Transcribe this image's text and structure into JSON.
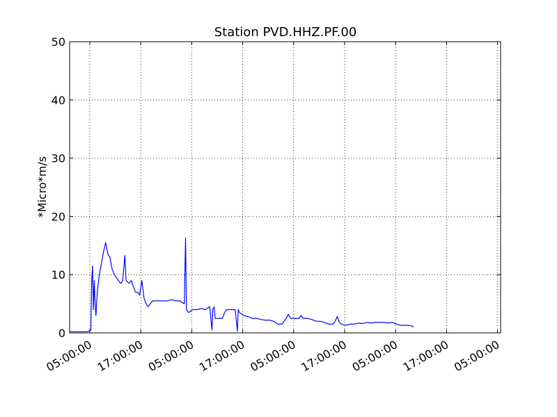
{
  "chart_data": {
    "type": "line",
    "title": "Station PVD.HHZ.PF.00",
    "xlabel": "",
    "ylabel": "*Micro*m/s",
    "ylim": [
      0,
      50
    ],
    "xlim_hours": [
      0,
      81
    ],
    "yticks": [
      0,
      10,
      20,
      30,
      40,
      50
    ],
    "xticks": [
      {
        "hour": 4,
        "label": "05:00:00"
      },
      {
        "hour": 16,
        "label": "17:00:00"
      },
      {
        "hour": 28,
        "label": "05:00:00"
      },
      {
        "hour": 40,
        "label": "17:00:00"
      },
      {
        "hour": 52,
        "label": "05:00:00"
      },
      {
        "hour": 64,
        "label": "17:00:00"
      },
      {
        "hour": 76,
        "label": "05:00:00"
      },
      {
        "hour": 88,
        "label": "17:00:00"
      },
      {
        "hour": 100,
        "label": "05:00:00"
      }
    ],
    "grid": true,
    "series": [
      {
        "name": "",
        "color": "#0000ff",
        "points": [
          [
            0,
            0.2
          ],
          [
            1,
            0.2
          ],
          [
            2,
            0.2
          ],
          [
            3,
            0.2
          ],
          [
            4,
            0.2
          ],
          [
            4.5,
            0.3
          ],
          [
            5,
            0.5
          ],
          [
            5.2,
            9
          ],
          [
            5.4,
            11.5
          ],
          [
            5.6,
            4
          ],
          [
            5.8,
            9
          ],
          [
            6,
            5
          ],
          [
            6.2,
            3
          ],
          [
            6.5,
            7
          ],
          [
            7,
            10
          ],
          [
            7.5,
            12
          ],
          [
            8,
            14
          ],
          [
            8.5,
            15.5
          ],
          [
            9,
            13.5
          ],
          [
            9.5,
            13
          ],
          [
            10,
            11
          ],
          [
            10.5,
            10
          ],
          [
            11,
            9.5
          ],
          [
            11.5,
            9
          ],
          [
            12,
            8.5
          ],
          [
            12.5,
            9
          ],
          [
            13,
            13.3
          ],
          [
            13.3,
            9
          ],
          [
            14,
            8.5
          ],
          [
            14.5,
            9
          ],
          [
            15,
            8
          ],
          [
            15.5,
            7
          ],
          [
            16,
            7
          ],
          [
            16.5,
            6.5
          ],
          [
            17,
            9
          ],
          [
            17.5,
            6
          ],
          [
            18,
            5
          ],
          [
            18.5,
            4.5
          ],
          [
            19,
            5
          ],
          [
            19.5,
            5.5
          ],
          [
            20,
            5.5
          ],
          [
            21,
            5.5
          ],
          [
            22,
            5.5
          ],
          [
            23,
            5.5
          ],
          [
            24,
            5.7
          ],
          [
            25,
            5.5
          ],
          [
            26,
            5.5
          ],
          [
            27,
            5
          ],
          [
            27.3,
            16.3
          ],
          [
            27.5,
            4
          ],
          [
            28,
            3.5
          ],
          [
            29,
            4
          ],
          [
            30,
            4
          ],
          [
            31,
            4.2
          ],
          [
            32,
            4
          ],
          [
            33,
            4.5
          ],
          [
            33.5,
            0.5
          ],
          [
            33.7,
            4
          ],
          [
            34,
            4.5
          ],
          [
            34.3,
            2.5
          ],
          [
            35,
            2.5
          ],
          [
            36,
            2.5
          ],
          [
            36.5,
            3.5
          ],
          [
            37,
            4
          ],
          [
            38,
            4
          ],
          [
            39,
            4
          ],
          [
            39.5,
            0.3
          ],
          [
            39.7,
            4
          ],
          [
            40,
            3.5
          ],
          [
            41,
            3
          ],
          [
            42,
            2.8
          ],
          [
            43,
            2.5
          ],
          [
            44,
            2.5
          ],
          [
            45,
            2.3
          ],
          [
            46,
            2.2
          ],
          [
            47,
            2.2
          ],
          [
            48,
            2
          ],
          [
            49,
            1.5
          ],
          [
            50,
            1.5
          ],
          [
            50.5,
            2
          ],
          [
            51,
            2.5
          ],
          [
            51.5,
            3.2
          ],
          [
            52,
            2.5
          ],
          [
            53,
            2.5
          ],
          [
            54,
            2.5
          ],
          [
            54.5,
            3
          ],
          [
            55,
            2.5
          ],
          [
            56,
            2.5
          ],
          [
            57,
            2.3
          ],
          [
            58,
            2
          ],
          [
            59,
            2
          ],
          [
            60,
            1.8
          ],
          [
            61,
            1.5
          ],
          [
            62,
            1.5
          ],
          [
            62.5,
            2
          ],
          [
            63,
            2.8
          ],
          [
            63.5,
            1.8
          ],
          [
            64,
            1.5
          ],
          [
            65,
            1.3
          ],
          [
            66,
            1.5
          ],
          [
            67,
            1.5
          ],
          [
            68,
            1.7
          ],
          [
            69,
            1.6
          ],
          [
            70,
            1.8
          ],
          [
            71,
            1.7
          ],
          [
            72,
            1.8
          ],
          [
            73,
            1.8
          ],
          [
            74,
            1.8
          ],
          [
            75,
            1.7
          ],
          [
            76,
            1.8
          ],
          [
            77,
            1.5
          ],
          [
            78,
            1.3
          ],
          [
            79,
            1.3
          ],
          [
            80,
            1.3
          ],
          [
            80.5,
            1.2
          ],
          [
            81,
            1
          ]
        ]
      }
    ]
  }
}
